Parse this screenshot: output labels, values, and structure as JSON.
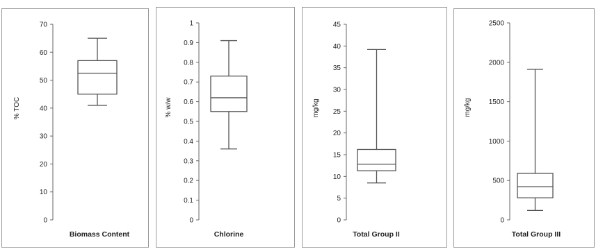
{
  "colors": {
    "box": "#555555",
    "axis": "#666666",
    "text": "#222222",
    "border": "#9a9a9a"
  },
  "chart_data": [
    {
      "type": "box",
      "xlabel": "Biomass Content",
      "ylabel": "% TOC",
      "ylim": [
        0,
        70
      ],
      "yticks": [
        "0",
        "10",
        "20",
        "30",
        "40",
        "50",
        "60",
        "70"
      ],
      "ytick_values": [
        0,
        10,
        20,
        30,
        40,
        50,
        60,
        70
      ],
      "whisker_low": 41,
      "q1": 45,
      "median": 52.5,
      "q3": 57,
      "whisker_high": 65
    },
    {
      "type": "box",
      "xlabel": "Chlorine",
      "ylabel": "% w/w",
      "ylim": [
        0,
        1
      ],
      "yticks": [
        "0",
        "0.1",
        "0.2",
        "0.3",
        "0.4",
        "0.5",
        "0.6",
        "0.7",
        "0.8",
        "0.9",
        "1"
      ],
      "ytick_values": [
        0,
        0.1,
        0.2,
        0.3,
        0.4,
        0.5,
        0.6,
        0.7,
        0.8,
        0.9,
        1
      ],
      "whisker_low": 0.36,
      "q1": 0.55,
      "median": 0.62,
      "q3": 0.73,
      "whisker_high": 0.91
    },
    {
      "type": "box",
      "xlabel": "Total Group II",
      "ylabel": "mg/kg",
      "ylim": [
        0,
        45
      ],
      "yticks": [
        "0",
        "5",
        "10",
        "15",
        "20",
        "25",
        "30",
        "35",
        "40",
        "45"
      ],
      "ytick_values": [
        0,
        5,
        10,
        15,
        20,
        25,
        30,
        35,
        40,
        45
      ],
      "whisker_low": 8.5,
      "q1": 11.3,
      "median": 12.8,
      "q3": 16.2,
      "whisker_high": 39.2
    },
    {
      "type": "box",
      "xlabel": "Total Group III",
      "ylabel": "mg/kg",
      "ylim": [
        0,
        2500
      ],
      "yticks": [
        "0",
        "500",
        "1000",
        "1500",
        "2000",
        "2500"
      ],
      "ytick_values": [
        0,
        500,
        1000,
        1500,
        2000,
        2500
      ],
      "whisker_low": 120,
      "q1": 280,
      "median": 420,
      "q3": 590,
      "whisker_high": 1910
    }
  ]
}
